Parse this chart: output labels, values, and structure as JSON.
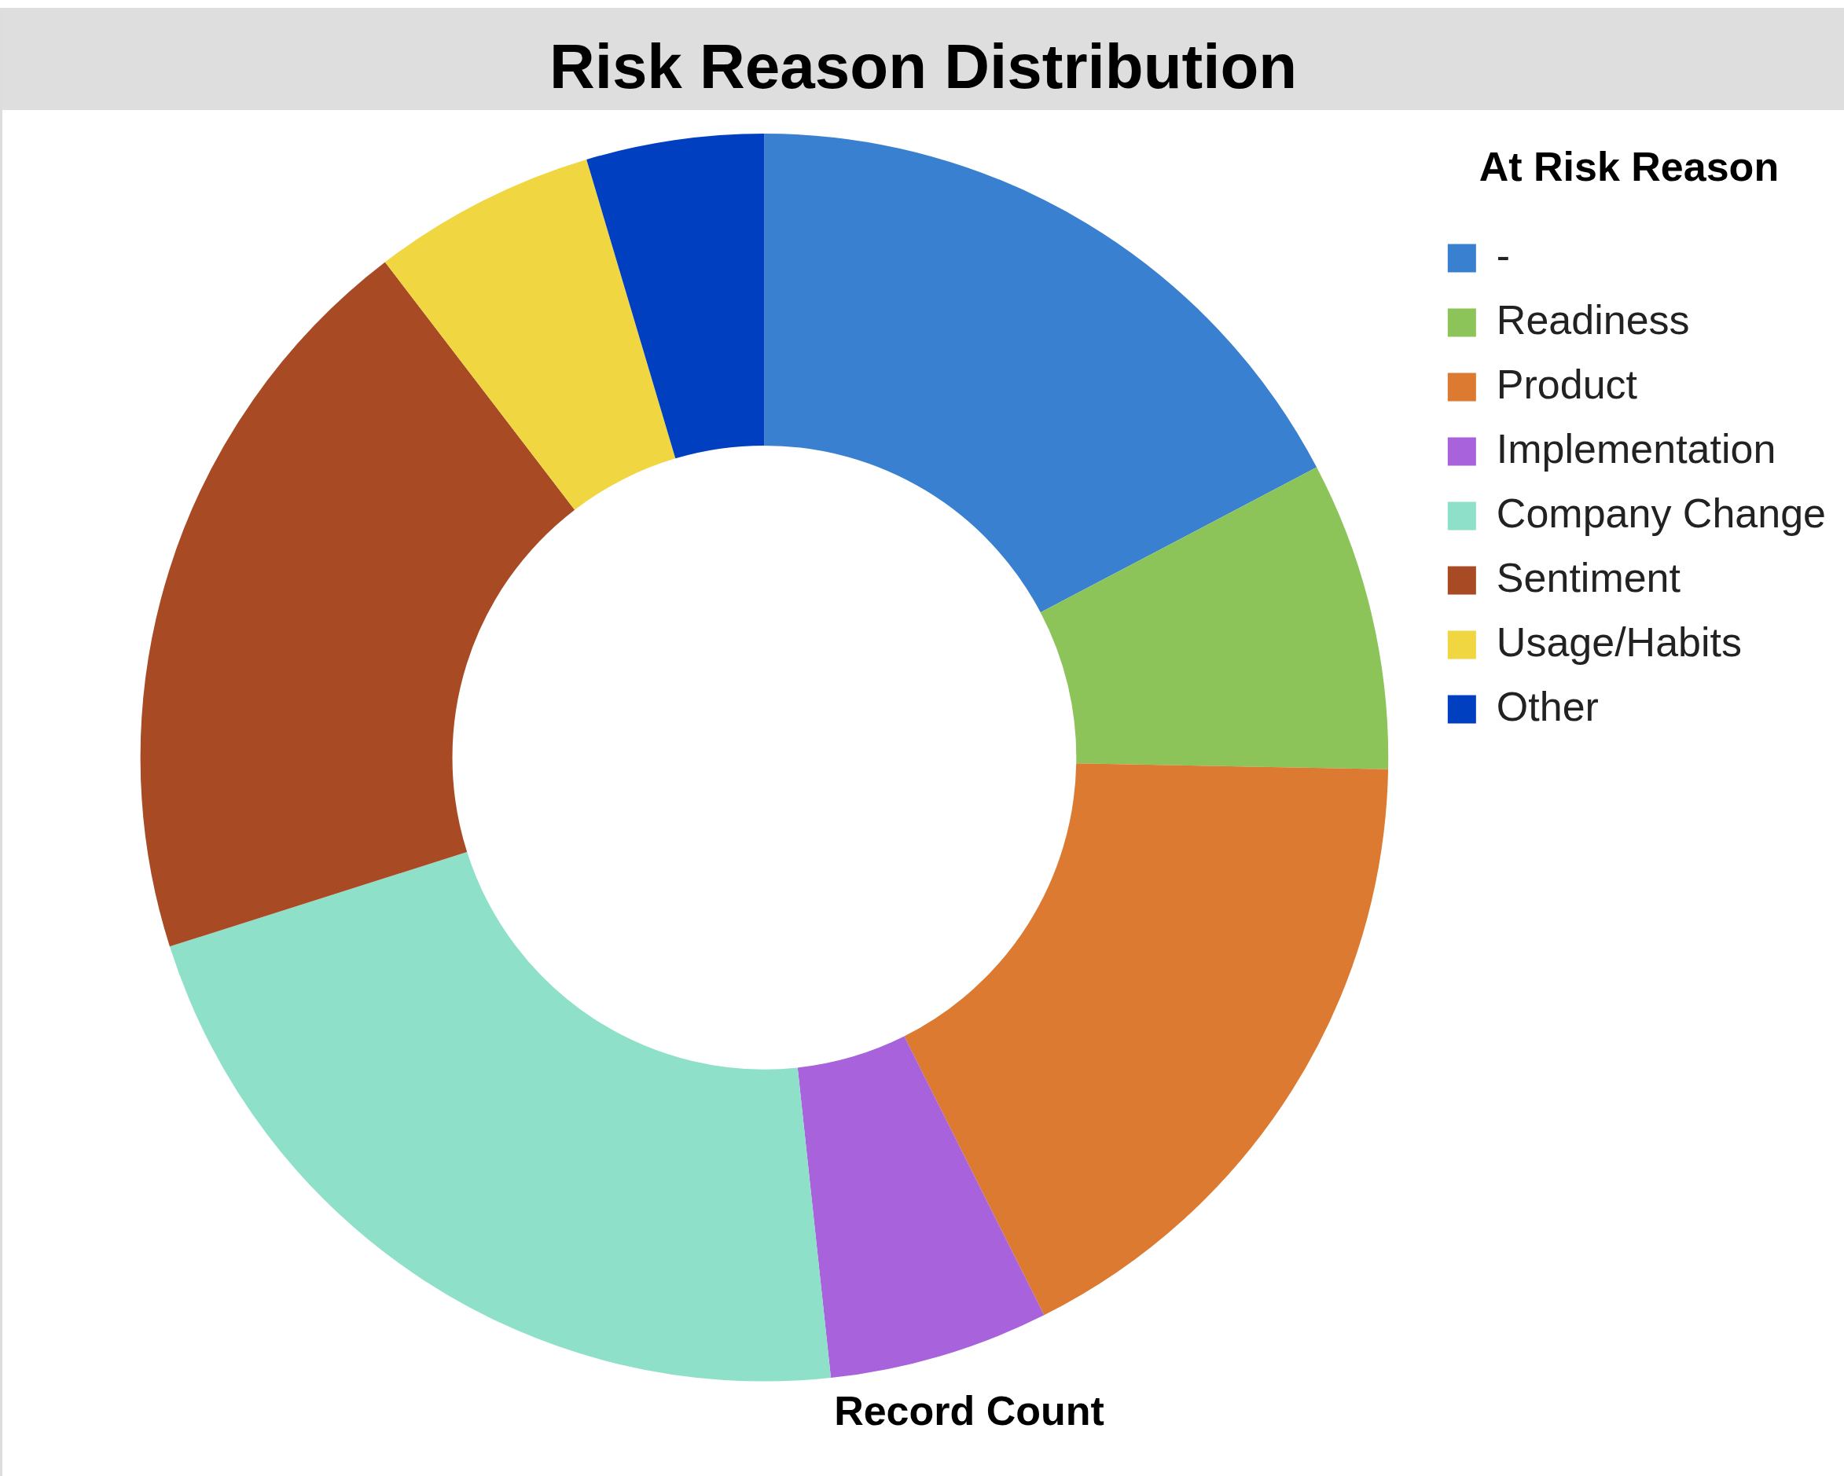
{
  "chart_data": {
    "type": "donut",
    "title": "Risk Reason Distribution",
    "xlabel": "Record Count",
    "legend_title": "At Risk Reason",
    "legend": "top right",
    "categories": [
      "-",
      "Readiness",
      "Product",
      "Implementation",
      "Company Change",
      "Sentiment",
      "Usage/Habits",
      "Other"
    ],
    "values": [
      17.3,
      8.0,
      17.3,
      5.7,
      21.8,
      19.5,
      5.8,
      4.6
    ],
    "colors": [
      "#3a80d0",
      "#8cc45a",
      "#db7a30",
      "#a862dc",
      "#8fe0c8",
      "#a84a24",
      "#f0d640",
      "#0040c0"
    ]
  }
}
